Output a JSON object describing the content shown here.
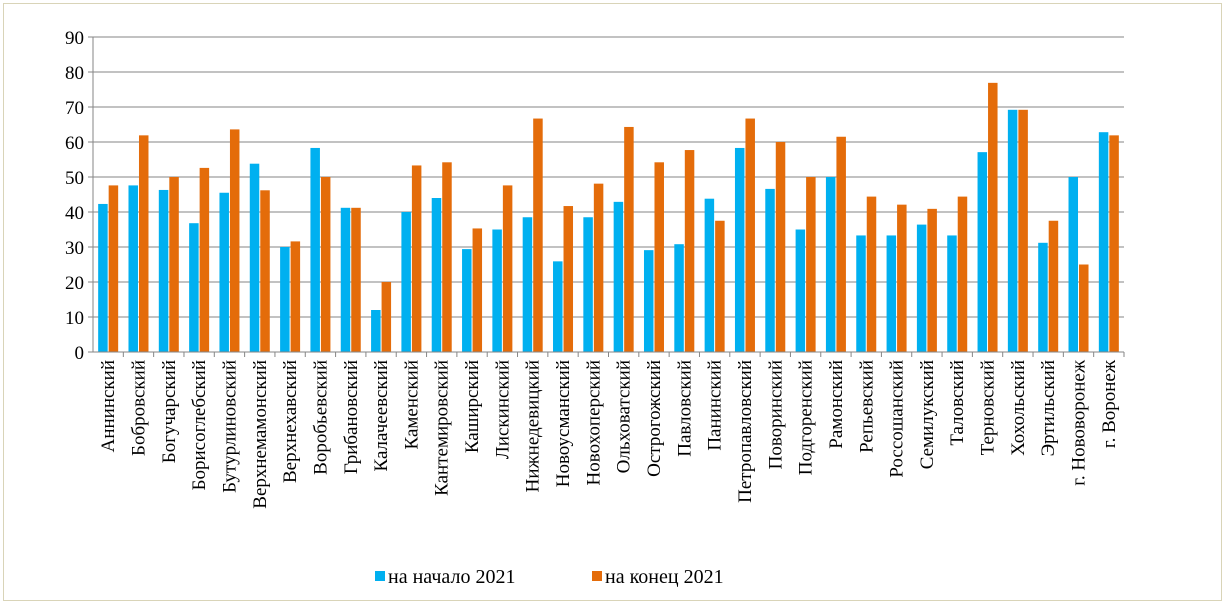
{
  "chart_data": {
    "type": "bar",
    "title": "",
    "xlabel": "",
    "ylabel": "",
    "ylim": [
      0,
      90
    ],
    "yticks": [
      "0",
      "10",
      "20",
      "30",
      "40",
      "50",
      "60",
      "70",
      "80",
      "90"
    ],
    "grid": true,
    "legend_position": "bottom",
    "categories": [
      "Аннинский",
      "Бобровский",
      "Богучарский",
      "Борисоглебский",
      "Бутурлиновский",
      "Верхнемамонский",
      "Верхнехавский",
      "Воробьевский",
      "Грибановский",
      "Калачеевский",
      "Каменский",
      "Кантемировский",
      "Каширский",
      "Лискинский",
      "Нижнедевицкий",
      "Новоусманский",
      "Новохоперский",
      "Ольховатский",
      "Острогожский",
      "Павловский",
      "Панинский",
      "Петропавловский",
      "Поворинский",
      "Подгоренский",
      "Рамонский",
      "Репьевский",
      "Россошанский",
      "Семилукский",
      "Таловский",
      "Терновский",
      "Хохольский",
      "Эртильский",
      "г. Нововоронеж",
      "г. Воронеж"
    ],
    "series": [
      {
        "name": "на начало 2021",
        "color": "#00b0f0",
        "values": [
          42.3,
          47.6,
          46.3,
          36.8,
          45.5,
          53.8,
          30.0,
          58.3,
          41.2,
          12.0,
          40.0,
          44.0,
          29.4,
          35.0,
          38.5,
          25.9,
          38.5,
          42.9,
          29.1,
          30.8,
          43.8,
          58.3,
          46.6,
          35.0,
          50.0,
          33.3,
          33.3,
          36.4,
          33.3,
          57.1,
          69.2,
          31.2,
          50.0,
          62.8
        ]
      },
      {
        "name": "на конец 2021",
        "color": "#e46c0a",
        "values": [
          47.6,
          61.9,
          50.0,
          52.6,
          63.6,
          46.2,
          31.6,
          50.0,
          41.2,
          20.0,
          53.3,
          54.2,
          35.3,
          47.6,
          66.7,
          41.7,
          48.1,
          64.3,
          54.2,
          57.7,
          37.5,
          66.7,
          60.0,
          50.0,
          61.5,
          44.4,
          42.1,
          40.9,
          44.4,
          76.9,
          69.2,
          37.5,
          25.0,
          61.9
        ]
      }
    ]
  }
}
